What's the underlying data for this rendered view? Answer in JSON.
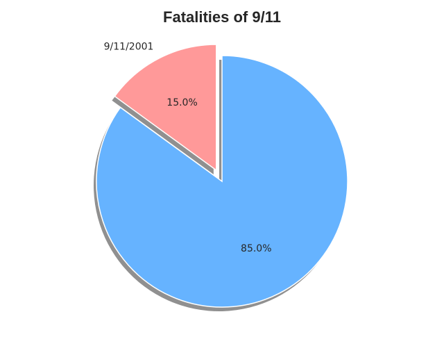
{
  "chart_data": {
    "type": "pie",
    "title": "Fatalities of 9/11",
    "slices": [
      {
        "label": "",
        "value": 85.0,
        "pct_label": "85.0%",
        "color": "#66b3ff",
        "exploded": false
      },
      {
        "label": "9/11/2001",
        "value": 15.0,
        "pct_label": "15.0%",
        "color": "#ff9999",
        "exploded": true
      }
    ],
    "start_angle_deg": 90,
    "direction": "clockwise",
    "shadow": true,
    "wedge_edge_color": "#ffffff"
  }
}
